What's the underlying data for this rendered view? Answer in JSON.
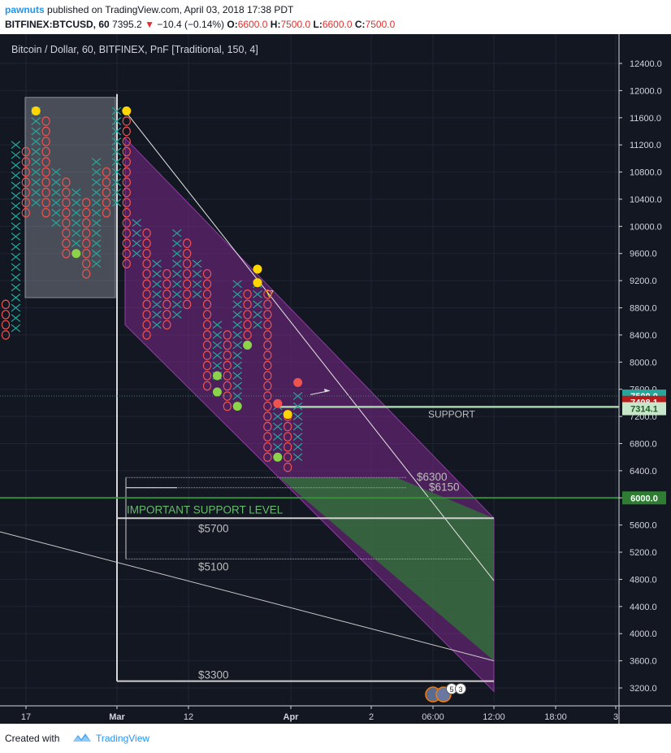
{
  "header": {
    "author": "pawnuts",
    "published_text": "published on TradingView.com, April 03, 2018 17:38 PDT",
    "symbol": "BITFINEX:BTCUSD, 60",
    "last": "7395.2",
    "change": "−10.4 (−0.14%)",
    "o_label": "O:",
    "o_value": "6600.0",
    "h_label": "H:",
    "h_value": "7500.0",
    "l_label": "L:",
    "l_value": "6600.0",
    "c_label": "C:",
    "c_value": "7500.0"
  },
  "footer": {
    "created_with": "Created with",
    "brand": "TradingView"
  },
  "colors": {
    "background": "#131722",
    "x_color": "#26a69a",
    "o_color": "#ef5350",
    "channel": "#7b2a8a",
    "green_zone": "#2e7d32",
    "support_line": "#388e3c",
    "price_box": "#c62828",
    "yellow_dot": "#ffd600",
    "green_dot": "#8bd44a",
    "red_dot": "#ef5350"
  },
  "chart_data": {
    "type": "point-and-figure",
    "title": "Bitcoin / Dollar, 60, BITFINEX, PnF [Traditional, 150, 4]",
    "y_axis": {
      "ticks": [
        "3200.0",
        "3600.0",
        "4000.0",
        "4400.0",
        "4800.0",
        "5200.0",
        "5600.0",
        "6000.0",
        "6400.0",
        "6800.0",
        "7200.0",
        "7600.0",
        "8000.0",
        "8400.0",
        "8800.0",
        "9200.0",
        "9600.0",
        "10000.0",
        "10400.0",
        "10800.0",
        "11200.0",
        "11600.0",
        "12000.0",
        "12400.0"
      ],
      "ylim": [
        3050,
        12750
      ]
    },
    "x_axis": {
      "ticks": [
        "17",
        "Mar",
        "12",
        "Apr",
        "2",
        "06:00",
        "12:00",
        "18:00",
        "3"
      ]
    },
    "price_labels": [
      {
        "text": "7500.0",
        "value": 7500
      },
      {
        "text": "7408.1",
        "value": 7408.1
      },
      {
        "text": "7314.1",
        "value": 7314.1
      },
      {
        "text": "6000.0",
        "value": 6000
      }
    ],
    "annotations": [
      {
        "text": "SUPPORT",
        "value": 7314
      },
      {
        "text": "$6300",
        "value": 6300
      },
      {
        "text": "$6150",
        "value": 6150
      },
      {
        "text": "IMPORTANT SUPPORT LEVEL",
        "value": 5700
      },
      {
        "text": "$5700",
        "value": 5700
      },
      {
        "text": "$5100",
        "value": 5100
      },
      {
        "text": "$3300",
        "value": 3300
      }
    ],
    "event_badges": [
      "5",
      "3"
    ],
    "columns": [
      {
        "type": "O",
        "high": 8850,
        "low": 8400
      },
      {
        "type": "X",
        "high": 11250,
        "low": 8500
      },
      {
        "type": "O",
        "high": 11100,
        "low": 10200
      },
      {
        "type": "X",
        "high": 11700,
        "low": 10350
      },
      {
        "type": "O",
        "high": 11550,
        "low": 10200
      },
      {
        "type": "X",
        "high": 10800,
        "low": 10050
      },
      {
        "type": "O",
        "high": 10650,
        "low": 9600
      },
      {
        "type": "X",
        "high": 10500,
        "low": 9750
      },
      {
        "type": "O",
        "high": 10350,
        "low": 9300
      },
      {
        "type": "X",
        "high": 10950,
        "low": 9450
      },
      {
        "type": "O",
        "high": 10800,
        "low": 10200
      },
      {
        "type": "X",
        "high": 11700,
        "low": 10350
      },
      {
        "type": "O",
        "high": 11550,
        "low": 9450
      },
      {
        "type": "X",
        "high": 10050,
        "low": 9600
      },
      {
        "type": "O",
        "high": 9900,
        "low": 8400
      },
      {
        "type": "X",
        "high": 9450,
        "low": 8550
      },
      {
        "type": "O",
        "high": 9300,
        "low": 8550
      },
      {
        "type": "X",
        "high": 9900,
        "low": 8700
      },
      {
        "type": "O",
        "high": 9750,
        "low": 8850
      },
      {
        "type": "X",
        "high": 9450,
        "low": 9000
      },
      {
        "type": "O",
        "high": 9300,
        "low": 7650
      },
      {
        "type": "X",
        "high": 8550,
        "low": 7800
      },
      {
        "type": "O",
        "high": 8400,
        "low": 7350
      },
      {
        "type": "X",
        "high": 9150,
        "low": 7500
      },
      {
        "type": "O",
        "high": 9000,
        "low": 8400
      },
      {
        "type": "X",
        "high": 9150,
        "low": 8550
      },
      {
        "type": "O",
        "high": 9000,
        "low": 6600
      },
      {
        "type": "X",
        "high": 7350,
        "low": 6750
      },
      {
        "type": "O",
        "high": 7200,
        "low": 6450
      },
      {
        "type": "X",
        "high": 7500,
        "low": 6600
      }
    ],
    "signal_dots": [
      {
        "color": "yellow",
        "column": 3,
        "value": 11700
      },
      {
        "color": "green",
        "column": 7,
        "value": 9600
      },
      {
        "color": "yellow",
        "column": 12,
        "value": 11700
      },
      {
        "color": "green",
        "column": 21,
        "value": 7800
      },
      {
        "color": "green",
        "column": 21,
        "value": 7560
      },
      {
        "color": "green",
        "column": 23,
        "value": 7350
      },
      {
        "color": "green",
        "column": 24,
        "value": 8250
      },
      {
        "color": "yellow",
        "column": 25,
        "value": 9370
      },
      {
        "color": "yellow",
        "column": 25,
        "value": 9170
      },
      {
        "color": "red",
        "column": 27,
        "value": 7390
      },
      {
        "color": "green",
        "column": 27,
        "value": 6600
      },
      {
        "color": "yellow",
        "column": 28,
        "value": 7230
      },
      {
        "color": "red",
        "column": 29,
        "value": 7700
      }
    ]
  }
}
